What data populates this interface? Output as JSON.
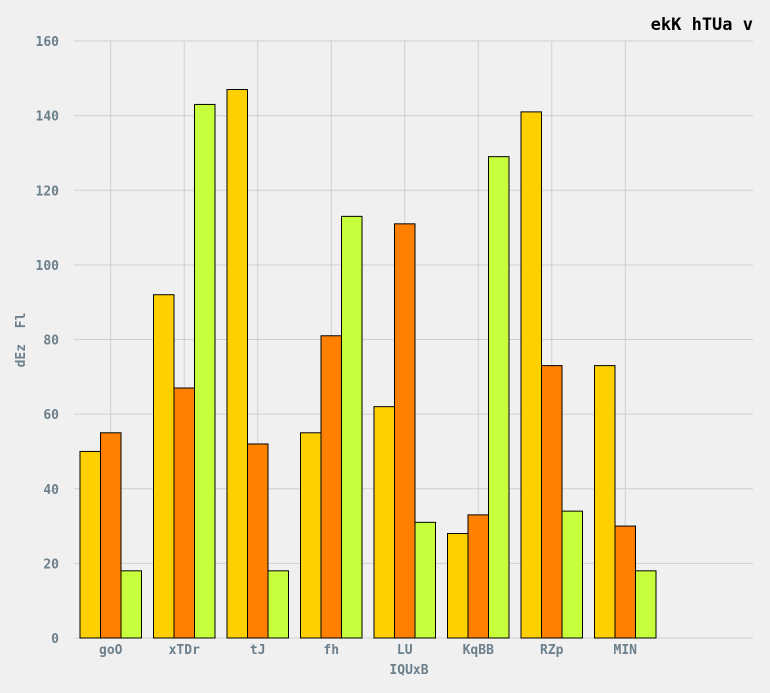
{
  "chart_data": {
    "type": "bar",
    "title": "ekK hTUa v",
    "xlabel": "IQUxB",
    "ylabel": "dEz  Fl",
    "categories": [
      "goO",
      "xTDr",
      "tJ",
      "fh",
      "LU",
      "KqBB",
      "RZp",
      "MIN"
    ],
    "series": [
      {
        "color": "#ffd000",
        "values": [
          50,
          92,
          147,
          55,
          62,
          28,
          141,
          73
        ]
      },
      {
        "color": "#ff7f00",
        "values": [
          55,
          67,
          52,
          81,
          111,
          33,
          73,
          30
        ]
      },
      {
        "color": "#c8ff3c",
        "values": [
          18,
          143,
          18,
          113,
          31,
          129,
          34,
          18
        ]
      }
    ],
    "ylim": [
      0,
      160
    ],
    "yticks": [
      0,
      20,
      40,
      60,
      80,
      100,
      120,
      140,
      160
    ],
    "grid": true,
    "legend": "none"
  }
}
